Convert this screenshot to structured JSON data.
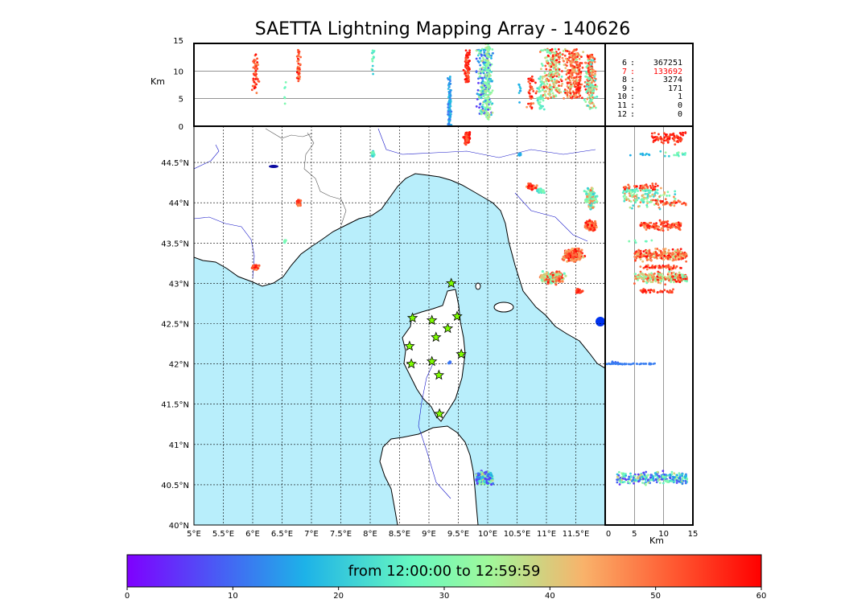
{
  "title": "SAETTA Lightning Mapping Array - 140626",
  "map": {
    "lon_ticks": [
      "5°E",
      "5.5°E",
      "6°E",
      "6.5°E",
      "7°E",
      "7.5°E",
      "8°E",
      "8.5°E",
      "9°E",
      "9.5°E",
      "10°E",
      "10.5°E",
      "11°E",
      "11.5°E"
    ],
    "lat_ticks": [
      "40°N",
      "40.5°N",
      "41°N",
      "41.5°N",
      "42°N",
      "42.5°N",
      "43°N",
      "43.5°N",
      "44°N",
      "44.5°N"
    ],
    "lon_range": [
      5,
      12
    ],
    "lat_range": [
      40,
      44.95
    ],
    "sea_color": "#b8eefb",
    "land_color": "#ffffff",
    "station_color": "#7fff00",
    "stations": [
      [
        9.38,
        43.0
      ],
      [
        8.72,
        42.57
      ],
      [
        9.05,
        42.54
      ],
      [
        9.48,
        42.59
      ],
      [
        9.12,
        42.33
      ],
      [
        9.32,
        42.44
      ],
      [
        8.67,
        42.22
      ],
      [
        8.7,
        42.0
      ],
      [
        9.05,
        42.03
      ],
      [
        9.55,
        42.12
      ],
      [
        9.17,
        41.86
      ],
      [
        9.18,
        41.38
      ]
    ]
  },
  "altitude_panel": {
    "ylabel": "Km",
    "ticks": [
      "0",
      "5",
      "10",
      "15"
    ],
    "range": [
      0,
      15
    ]
  },
  "side_panel": {
    "xlabel": "Km",
    "ticks": [
      "0",
      "5",
      "10",
      "15"
    ],
    "range": [
      0,
      15
    ]
  },
  "stats": [
    {
      "n": "6",
      "count": "367251",
      "color": "#000000"
    },
    {
      "n": "7",
      "count": "133692",
      "color": "#ff0000"
    },
    {
      "n": "8",
      "count": "3274",
      "color": "#000000"
    },
    {
      "n": "9",
      "count": "171",
      "color": "#000000"
    },
    {
      "n": "10",
      "count": "1",
      "color": "#000000"
    },
    {
      "n": "11",
      "count": "0",
      "color": "#000000"
    },
    {
      "n": "12",
      "count": "0",
      "color": "#000000"
    }
  ],
  "colorbar": {
    "label": "from 12:00:00 to 12:59:59",
    "ticks": [
      "0",
      "10",
      "20",
      "30",
      "40",
      "50",
      "60"
    ],
    "range": [
      0,
      60
    ],
    "colormap": [
      "#7f00ff",
      "#4a5af5",
      "#1db2e8",
      "#67f8c0",
      "#a0f89b",
      "#f9b26a",
      "#ff5a32",
      "#ff0000"
    ]
  }
}
